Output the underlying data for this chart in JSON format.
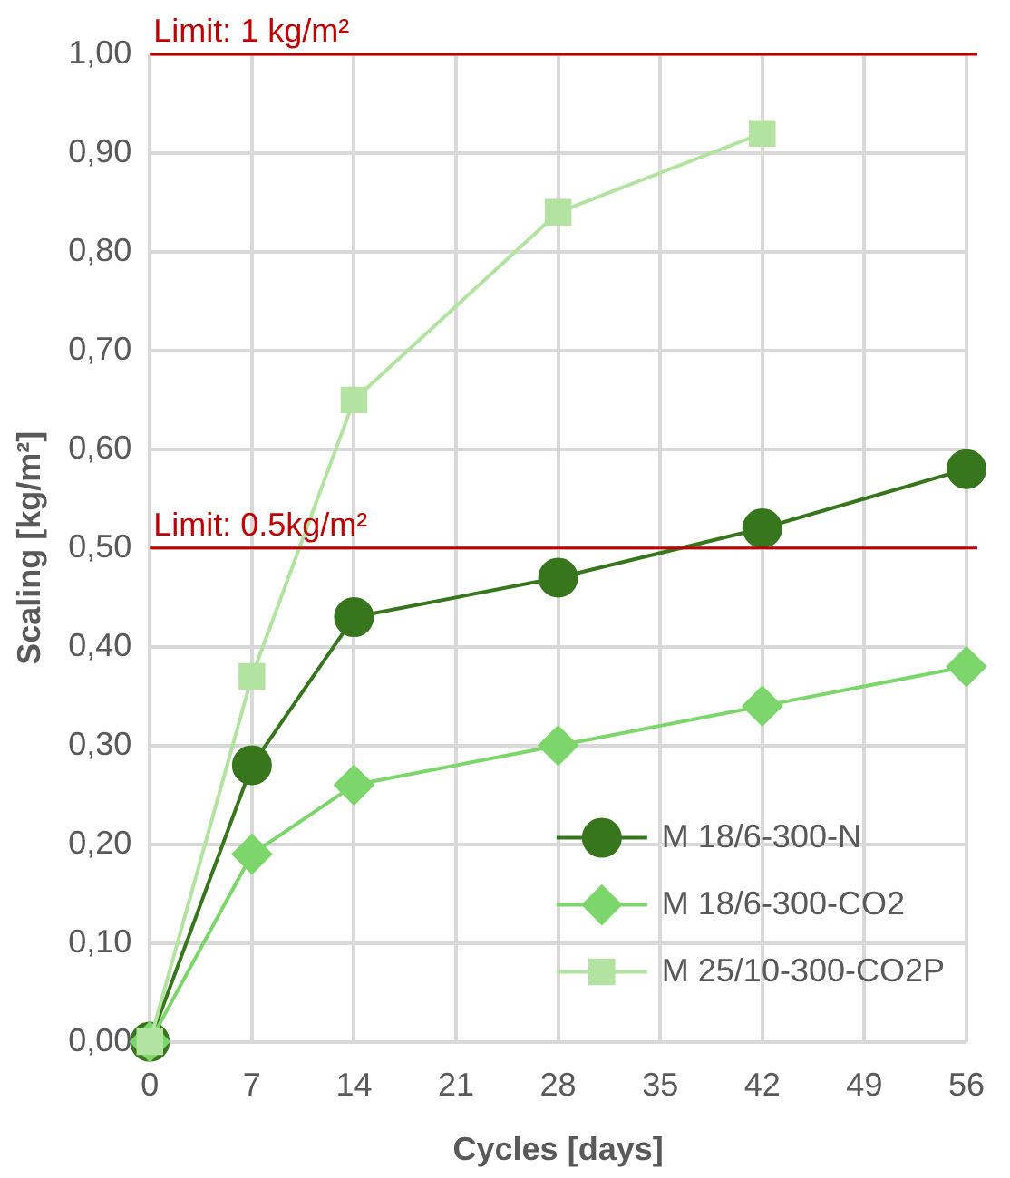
{
  "chart_data": {
    "type": "line",
    "xlabel": "Cycles [days]",
    "ylabel": "Scaling [kg/m²]",
    "xlim": [
      0,
      56
    ],
    "xticks": [
      0,
      7,
      14,
      21,
      28,
      35,
      42,
      49,
      56
    ],
    "ylim": [
      0,
      1
    ],
    "yticks": [
      {
        "value": 0,
        "label": "0,00"
      },
      {
        "value": 0.1,
        "label": "0,10"
      },
      {
        "value": 0.2,
        "label": "0,20"
      },
      {
        "value": 0.3,
        "label": "0,30"
      },
      {
        "value": 0.4,
        "label": "0,40"
      },
      {
        "value": 0.5,
        "label": "0,50"
      },
      {
        "value": 0.6,
        "label": "0,60"
      },
      {
        "value": 0.7,
        "label": "0,70"
      },
      {
        "value": 0.8,
        "label": "0,80"
      },
      {
        "value": 0.9,
        "label": "0,90"
      },
      {
        "value": 1,
        "label": "1,00"
      }
    ],
    "grid": true,
    "legend": "bottom right",
    "line_style": "solid",
    "series": [
      {
        "name": "M 18/6-300-N",
        "color": "#38761d",
        "marker": "circle",
        "x": [
          0,
          7,
          14,
          28,
          42,
          56
        ],
        "values": [
          0,
          0.28,
          0.43,
          0.47,
          0.52,
          0.58
        ]
      },
      {
        "name": "M 18/6-300-CO2",
        "color": "#7dd66b",
        "marker": "diamond",
        "x": [
          0,
          7,
          14,
          28,
          42,
          56
        ],
        "values": [
          0,
          0.19,
          0.26,
          0.3,
          0.34,
          0.38
        ]
      },
      {
        "name": "M 25/10-300-CO2P",
        "color": "#b3e3a0",
        "marker": "square",
        "x": [
          0,
          7,
          14,
          28,
          42
        ],
        "values": [
          0,
          0.37,
          0.65,
          0.84,
          0.92
        ]
      }
    ],
    "ref_lines": [
      {
        "axis": "y",
        "value": 1,
        "label": "Limit: 1 kg/m²",
        "color": "#c00000"
      },
      {
        "axis": "y",
        "value": 0.5,
        "label": "Limit: 0.5kg/m²",
        "color": "#c00000"
      }
    ]
  }
}
